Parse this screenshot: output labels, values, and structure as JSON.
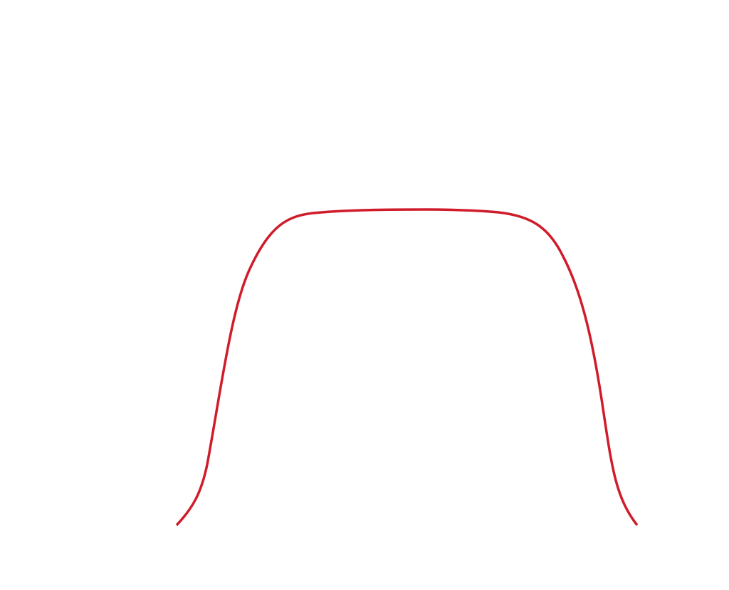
{
  "figure": {
    "background_color": "#ffffff",
    "curve": {
      "name": "flat-top-plateau",
      "color": "#d01c2a",
      "description_visible_text": ""
    }
  }
}
